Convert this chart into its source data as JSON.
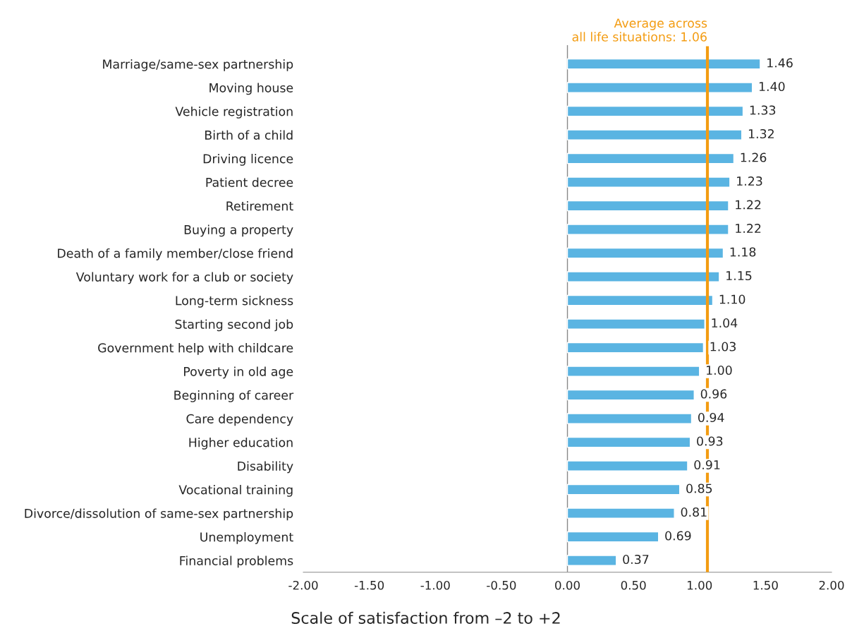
{
  "chart_data": {
    "type": "bar",
    "orientation": "horizontal",
    "xlabel": "Scale of satisfaction from –2 to +2",
    "categories": [
      "Marriage/same-sex partnership",
      "Moving house",
      "Vehicle registration",
      "Birth of a child",
      "Driving licence",
      "Patient decree",
      "Retirement",
      "Buying a property",
      "Death of a family member/close friend",
      "Voluntary work for a club or society",
      "Long-term sickness",
      "Starting second job",
      "Government help with childcare",
      "Poverty in old age",
      "Beginning of career",
      "Care dependency",
      "Higher education",
      "Disability",
      "Vocational training",
      "Divorce/dissolution of same-sex partnership",
      "Unemployment",
      "Financial problems"
    ],
    "values": [
      1.46,
      1.4,
      1.33,
      1.32,
      1.26,
      1.23,
      1.22,
      1.22,
      1.18,
      1.15,
      1.1,
      1.04,
      1.03,
      1.0,
      0.96,
      0.94,
      0.93,
      0.91,
      0.85,
      0.81,
      0.69,
      0.37
    ],
    "value_labels": [
      "1.46",
      "1.40",
      "1.33",
      "1.32",
      "1.26",
      "1.23",
      "1.22",
      "1.22",
      "1.18",
      "1.15",
      "1.10",
      "1.04",
      "1.03",
      "1.00",
      "0.96",
      "0.94",
      "0.93",
      "0.91",
      "0.85",
      "0.81",
      "0.69",
      "0.37"
    ],
    "color": "#5ab4e2",
    "xlim": [
      -2,
      2
    ],
    "xticks": [
      {
        "value": -2,
        "label": "-2.00"
      },
      {
        "value": -1.5,
        "label": "-1.50"
      },
      {
        "value": -1,
        "label": "-1.00"
      },
      {
        "value": -0.5,
        "label": "-0.50"
      },
      {
        "value": 0,
        "label": "0.00"
      },
      {
        "value": 0.5,
        "label": "0.50"
      },
      {
        "value": 1,
        "label": "1.00"
      },
      {
        "value": 1.5,
        "label": "1.50"
      },
      {
        "value": 2,
        "label": "2.00"
      }
    ],
    "ref_lines": [
      {
        "axis": "x",
        "value": 0,
        "color": "#888888"
      },
      {
        "axis": "x",
        "value": 1.06,
        "label": "Average across\nall life situations: 1.06",
        "color": "#f39c12"
      }
    ],
    "grid": false,
    "legend": false
  }
}
